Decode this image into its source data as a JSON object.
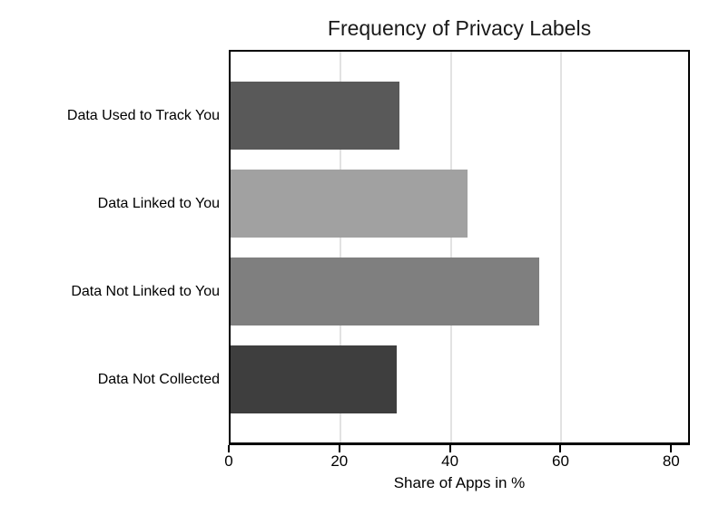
{
  "chart_data": {
    "type": "bar",
    "orientation": "horizontal",
    "title": "Frequency of Privacy Labels",
    "xlabel": "Share of Apps in %",
    "ylabel": "",
    "categories": [
      "Data Used to Track You",
      "Data Linked to You",
      "Data Not Linked to You",
      "Data Not Collected"
    ],
    "values": [
      30.5,
      42.8,
      55.9,
      30
    ],
    "bar_colors": [
      "#595959",
      "#a1a1a1",
      "#7f7f7f",
      "#3e3e3e"
    ],
    "xlim": [
      0,
      83.4
    ],
    "xticks": [
      0,
      20,
      40,
      60,
      80
    ],
    "gridlines_at": [
      20,
      40,
      60
    ],
    "grid_on": true,
    "grid_color": "#e2e2e2",
    "legend_position": "none",
    "frame": "box",
    "axis_color": "#000000",
    "background_color": "#ffffff"
  }
}
